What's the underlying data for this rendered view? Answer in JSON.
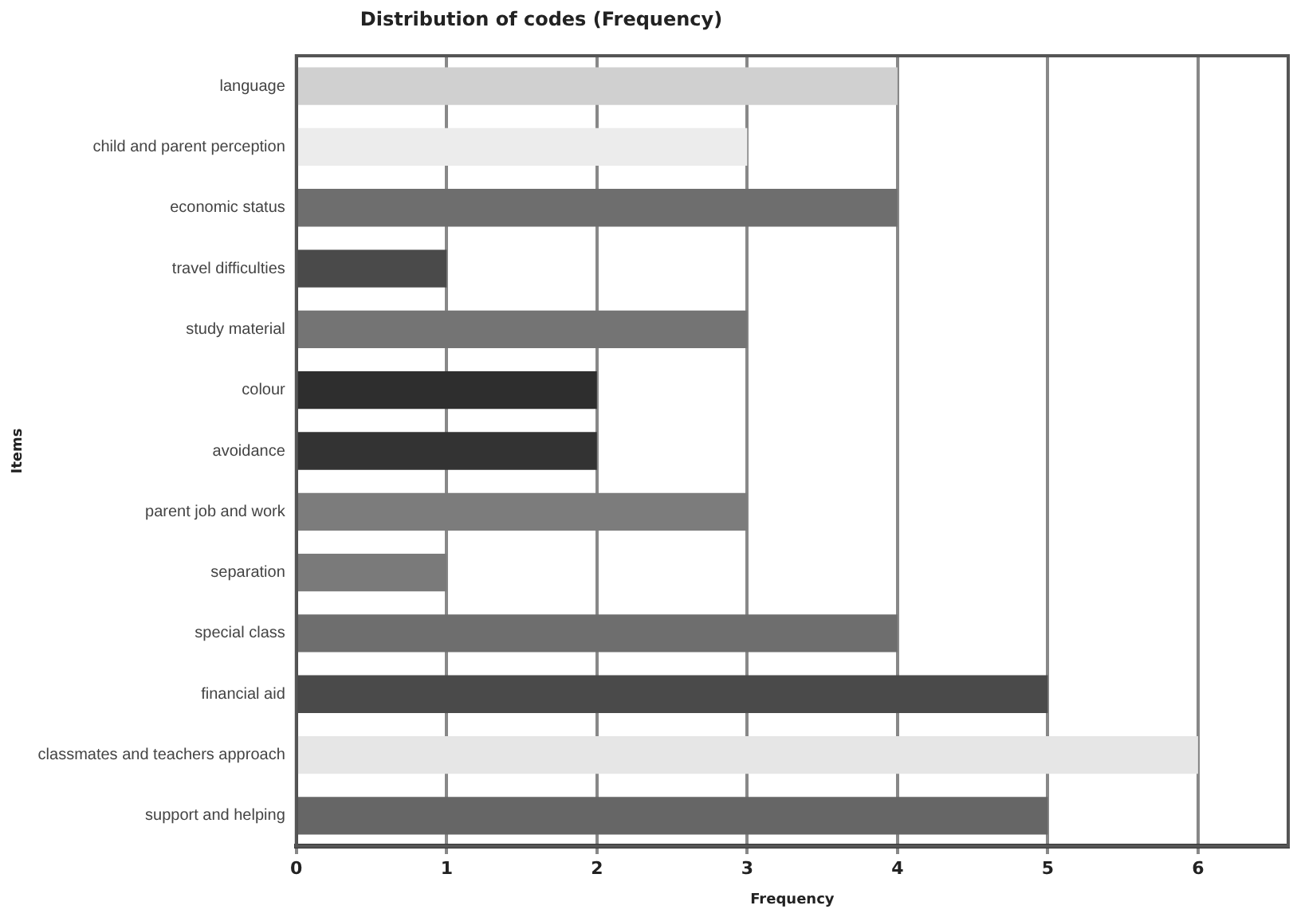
{
  "chart_data": {
    "type": "bar",
    "orientation": "horizontal",
    "title": "Distribution of codes (Frequency)",
    "xlabel": "Frequency",
    "ylabel": "Items",
    "categories": [
      "language",
      "child and parent perception",
      "economic status",
      "travel difficulties",
      "study material",
      "colour",
      "avoidance",
      "parent job and work",
      "separation",
      "special class",
      "financial aid",
      "classmates and teachers approach",
      "support and helping"
    ],
    "values": [
      4,
      3,
      4,
      1,
      3,
      2,
      2,
      3,
      1,
      4,
      5,
      6,
      5
    ],
    "colors": [
      "#d0d0d0",
      "#ececec",
      "#6e6e6e",
      "#4a4a4a",
      "#747474",
      "#2e2e2e",
      "#333333",
      "#7c7c7c",
      "#7a7a7a",
      "#6e6e6e",
      "#4a4a4a",
      "#e6e6e6",
      "#666666"
    ],
    "xlim": [
      0,
      6.6
    ],
    "xticks": [
      0,
      1,
      2,
      3,
      4,
      5,
      6
    ],
    "grid": "x",
    "legend": false
  }
}
